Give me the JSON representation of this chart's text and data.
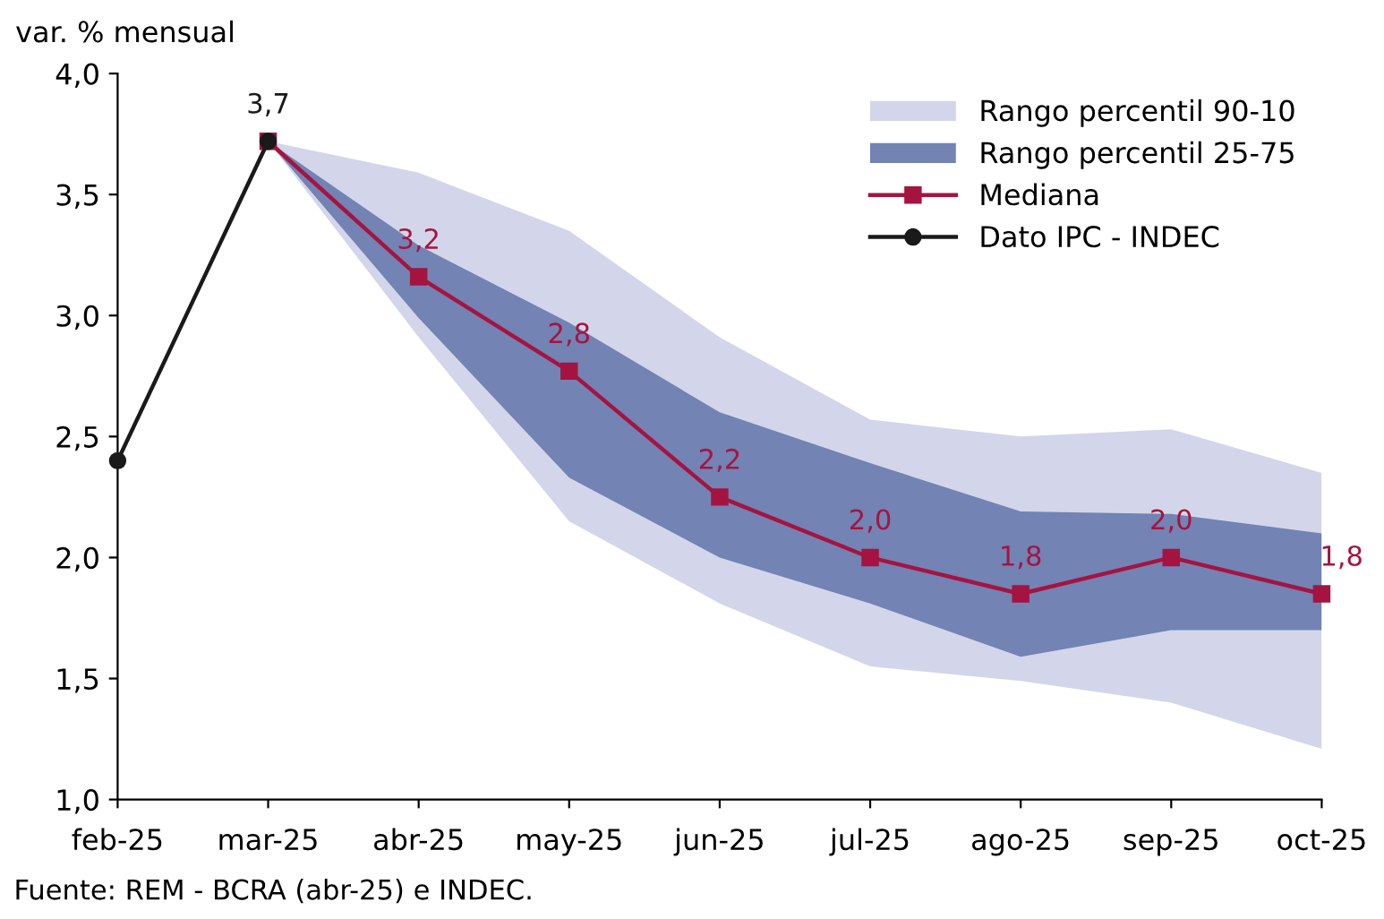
{
  "chart_data": {
    "type": "line",
    "ylabel": "var. % mensual",
    "categories": [
      "feb-25",
      "mar-25",
      "abr-25",
      "may-25",
      "jun-25",
      "jul-25",
      "ago-25",
      "sep-25",
      "oct-25"
    ],
    "series": [
      {
        "name": "Rango percentil 90-10",
        "type": "area",
        "color": "#d3d6ea",
        "values": [
          null,
          null,
          null,
          null,
          null,
          null,
          null,
          null,
          null
        ],
        "upper": [
          null,
          3.72,
          3.59,
          3.35,
          2.91,
          2.57,
          2.5,
          2.53,
          2.35
        ],
        "lower": [
          null,
          3.72,
          2.91,
          2.15,
          1.81,
          1.55,
          1.49,
          1.4,
          1.21
        ]
      },
      {
        "name": "Rango percentil 25-75",
        "type": "area",
        "color": "#7283b4",
        "values": [
          null,
          null,
          null,
          null,
          null,
          null,
          null,
          null,
          null
        ],
        "upper": [
          null,
          3.72,
          3.29,
          2.97,
          2.6,
          2.39,
          2.19,
          2.18,
          2.1
        ],
        "lower": [
          null,
          3.72,
          2.99,
          2.33,
          2.0,
          1.81,
          1.59,
          1.7,
          1.7
        ]
      },
      {
        "name": "Mediana",
        "type": "line",
        "color": "#a51440",
        "marker": "square",
        "values": [
          null,
          3.72,
          3.16,
          2.77,
          2.25,
          2.0,
          1.85,
          2.0,
          1.85
        ],
        "value_labels": [
          null,
          null,
          "3,2",
          "2,8",
          "2,2",
          "2,0",
          "1,8",
          "2,0",
          "1,8"
        ]
      },
      {
        "name": "Dato IPC - INDEC",
        "type": "line",
        "color": "#1a1a1a",
        "marker": "circle",
        "values": [
          2.4,
          3.72,
          null,
          null,
          null,
          null,
          null,
          null,
          null
        ],
        "value_labels": [
          null,
          "3,7",
          null,
          null,
          null,
          null,
          null,
          null,
          null
        ]
      }
    ],
    "ylim": [
      1.0,
      4.0
    ],
    "yticks": [
      {
        "value": 1.0,
        "label": "1,0"
      },
      {
        "value": 1.5,
        "label": "1,5"
      },
      {
        "value": 2.0,
        "label": "2,0"
      },
      {
        "value": 2.5,
        "label": "2,5"
      },
      {
        "value": 3.0,
        "label": "3,0"
      },
      {
        "value": 3.5,
        "label": "3,5"
      },
      {
        "value": 4.0,
        "label": "4,0"
      }
    ],
    "grid": false,
    "legend": "top right",
    "annotations": [
      "Fuente: REM - BCRA (abr-25) e INDEC."
    ]
  }
}
